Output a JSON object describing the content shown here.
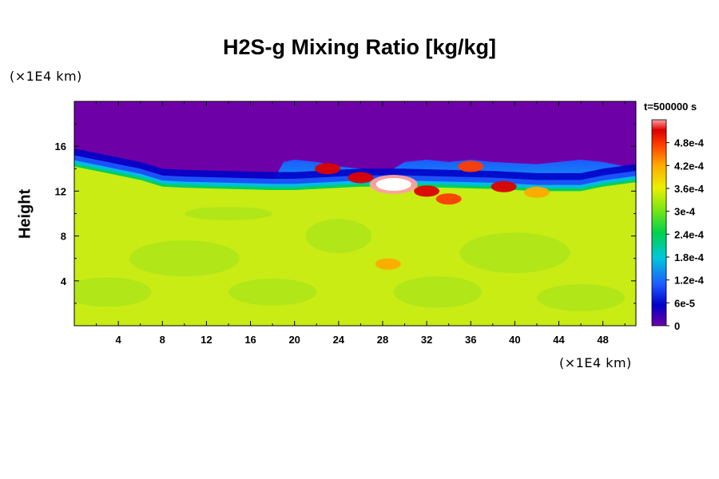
{
  "chart_data": {
    "type": "heatmap",
    "title": "H2S-g Mixing Ratio [kg/kg]",
    "xlabel": "",
    "ylabel": "Height",
    "x_unit": "(×1E4 km)",
    "y_unit": "(×1E4 km)",
    "time_label": "t=500000 s",
    "xlim": [
      0,
      51
    ],
    "ylim": [
      0,
      20
    ],
    "x_ticks": [
      4,
      8,
      12,
      16,
      20,
      24,
      28,
      32,
      36,
      40,
      44,
      48
    ],
    "y_ticks": [
      4,
      8,
      12,
      16
    ],
    "colorbar": {
      "min": 0,
      "max": 0.00054,
      "tick_values": [
        0,
        6e-05,
        0.00012,
        0.00018,
        0.00024,
        0.0003,
        0.00036,
        0.00042,
        0.00048
      ],
      "tick_labels": [
        "0",
        "6e-5",
        "1.2e-4",
        "1.8e-4",
        "2.4e-4",
        "3e-4",
        "3.6e-4",
        "4.2e-4",
        "4.8e-4"
      ],
      "colors": [
        "#6e00a8",
        "#0000c8",
        "#1e5aff",
        "#00c8dc",
        "#00d24b",
        "#78e614",
        "#ebf000",
        "#ffaa00",
        "#ff3c00",
        "#dc0000",
        "#ffa0a0"
      ]
    },
    "regions": {
      "lower_layer_value": 0.00034,
      "upper_layer_value": 0,
      "interface_height_profile": {
        "x": [
          0,
          3,
          6,
          8,
          10,
          14,
          18,
          20,
          22,
          26,
          30,
          34,
          38,
          42,
          46,
          48,
          51
        ],
        "y": [
          14.2,
          13.6,
          13.0,
          12.4,
          12.3,
          12.2,
          12.1,
          12.1,
          12.2,
          12.4,
          12.4,
          12.3,
          12.2,
          12.0,
          12.0,
          12.4,
          12.8
        ]
      },
      "plume_top_profile": {
        "x": [
          18,
          19,
          20,
          22,
          24,
          26,
          28,
          30,
          32,
          34,
          36,
          38,
          40,
          42,
          44,
          46,
          48,
          50,
          51
        ],
        "y": [
          12.8,
          14.6,
          14.8,
          14.6,
          14.2,
          14.0,
          13.4,
          14.6,
          14.8,
          14.6,
          14.8,
          14.6,
          14.5,
          14.4,
          14.6,
          14.8,
          14.6,
          14.2,
          14.0
        ]
      },
      "high_concentration_blobs": [
        {
          "x": 26,
          "y": 13.2,
          "value": 0.0005
        },
        {
          "x": 29,
          "y": 12.6,
          "value": 0.00054
        },
        {
          "x": 32,
          "y": 12.0,
          "value": 0.00048
        },
        {
          "x": 34,
          "y": 11.3,
          "value": 0.00044
        },
        {
          "x": 39,
          "y": 12.4,
          "value": 0.00046
        },
        {
          "x": 42,
          "y": 11.9,
          "value": 0.0004
        },
        {
          "x": 36,
          "y": 14.2,
          "value": 0.00044
        },
        {
          "x": 23,
          "y": 14.0,
          "value": 0.00046
        },
        {
          "x": 28.5,
          "y": 5.5,
          "value": 0.00036
        }
      ]
    }
  }
}
